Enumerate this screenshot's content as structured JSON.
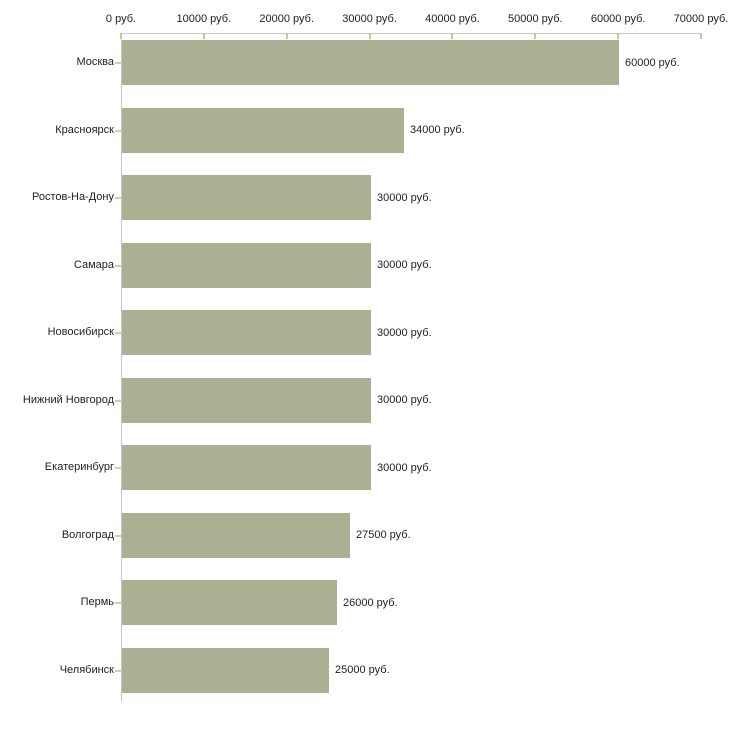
{
  "chart_data": {
    "type": "bar",
    "orientation": "horizontal",
    "categories": [
      "Москва",
      "Красноярск",
      "Ростов-На-Дону",
      "Самара",
      "Новосибирск",
      "Нижний Новгород",
      "Екатеринбург",
      "Волгоград",
      "Пермь",
      "Челябинск"
    ],
    "values": [
      60000,
      34000,
      30000,
      30000,
      30000,
      30000,
      30000,
      27500,
      26000,
      25000
    ],
    "value_labels": [
      "60000 руб.",
      "34000 руб.",
      "30000 руб.",
      "30000 руб.",
      "30000 руб.",
      "30000 руб.",
      "30000 руб.",
      "27500 руб.",
      "26000 руб.",
      "25000 руб."
    ],
    "x_ticks": [
      0,
      10000,
      20000,
      30000,
      40000,
      50000,
      60000,
      70000
    ],
    "x_tick_labels": [
      "0 руб.",
      "10000 руб.",
      "20000 руб.",
      "30000 руб.",
      "40000 руб.",
      "50000 руб.",
      "60000 руб.",
      "70000 руб."
    ],
    "xlim": [
      0,
      70000
    ],
    "grid": false,
    "bar_color": "#aab193",
    "axis_color": "#c6c6c6",
    "x_tick_color": "#c2c89c",
    "y_tick_color": "#ccd1a6"
  }
}
